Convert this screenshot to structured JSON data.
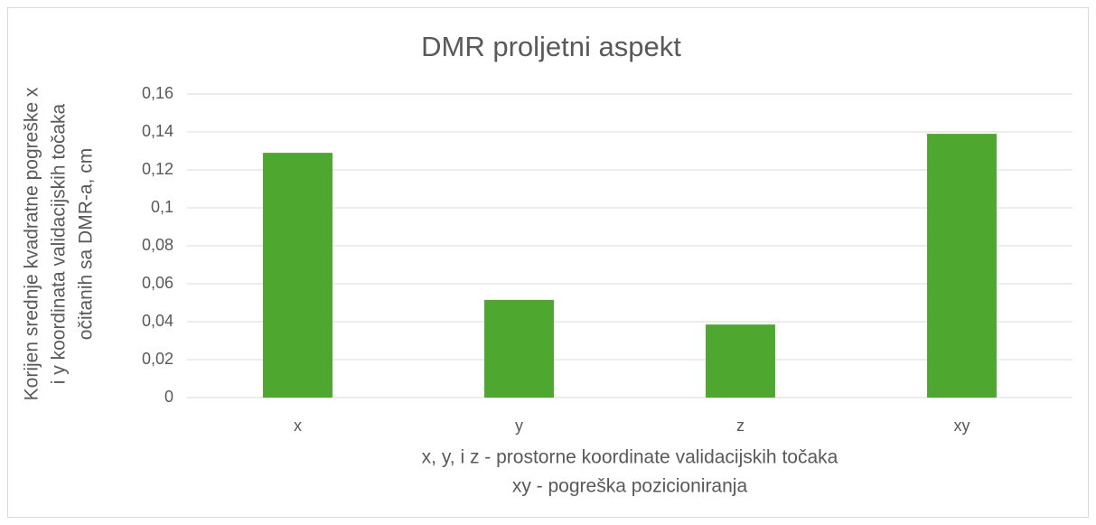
{
  "chart_data": {
    "type": "bar",
    "title": "DMR proljetni aspekt",
    "categories": [
      "x",
      "y",
      "z",
      "xy"
    ],
    "values": [
      0.129,
      0.0515,
      0.0385,
      0.139
    ],
    "color": "#4ea72e",
    "ylabel": [
      "Korijen srednje kvadratne pogreške x",
      "i y koordinata validacijskih točaka",
      "očitanih sa DMR-a, cm"
    ],
    "xlabel": [
      "x, y, i z - prostorne koordinate validacijskih točaka",
      "xy - pogreška pozicioniranja"
    ],
    "ylim": [
      0,
      0.16
    ],
    "yticks": [
      0,
      {
        "value": 0.02,
        "label": "0,02"
      },
      {
        "value": 0.04,
        "label": "0,04"
      },
      {
        "value": 0.06,
        "label": "0,06"
      },
      {
        "value": 0.08,
        "label": "0,08"
      },
      {
        "value": 0.1,
        "label": "0,1"
      },
      {
        "value": 0.12,
        "label": "0,12"
      },
      {
        "value": 0.14,
        "label": "0,14"
      },
      {
        "value": 0.16,
        "label": "0,16"
      }
    ],
    "grid": true
  }
}
